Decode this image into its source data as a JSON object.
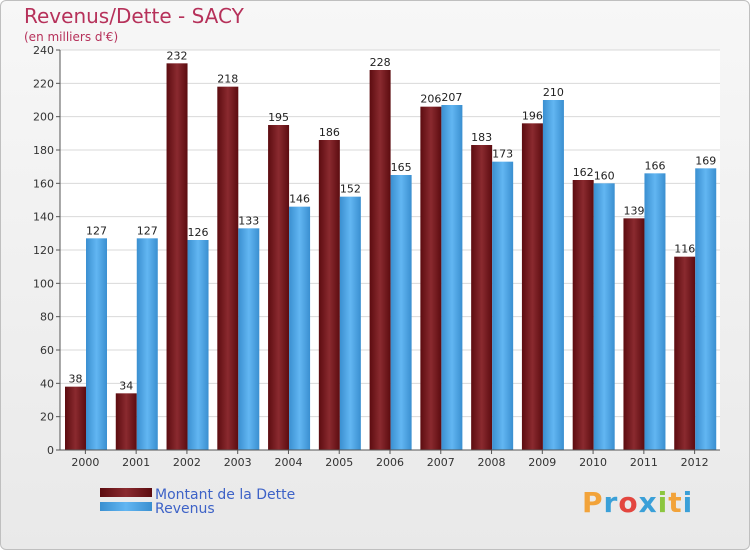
{
  "header": {
    "title": "Revenus/Dette - SACY",
    "subtitle": "(en milliers d'€)"
  },
  "logo": {
    "text": "Proxiti",
    "letters": [
      "P",
      "r",
      "o",
      "x",
      "i",
      "t",
      "i"
    ],
    "colors": [
      "#f2a33a",
      "#3aa0d8",
      "#e3463f",
      "#3aa0d8",
      "#8cc63f",
      "#f2a33a",
      "#3aa0d8"
    ]
  },
  "chart_data": {
    "type": "bar",
    "categories": [
      "2000",
      "2001",
      "2002",
      "2003",
      "2004",
      "2005",
      "2006",
      "2007",
      "2008",
      "2009",
      "2010",
      "2011",
      "2012"
    ],
    "series": [
      {
        "name": "Montant de la Dette",
        "color": "#7a1f24",
        "values": [
          38,
          34,
          232,
          218,
          195,
          186,
          228,
          206,
          183,
          196,
          162,
          139,
          116
        ]
      },
      {
        "name": "Revenus",
        "color": "#4aa6e8",
        "values": [
          127,
          127,
          126,
          133,
          146,
          152,
          165,
          207,
          173,
          210,
          160,
          166,
          169
        ]
      }
    ],
    "ylim": [
      0,
      240
    ],
    "yticks": [
      0,
      20,
      40,
      60,
      80,
      100,
      120,
      140,
      160,
      180,
      200,
      220,
      240
    ],
    "grid": true,
    "legend_position": "bottom-left"
  }
}
